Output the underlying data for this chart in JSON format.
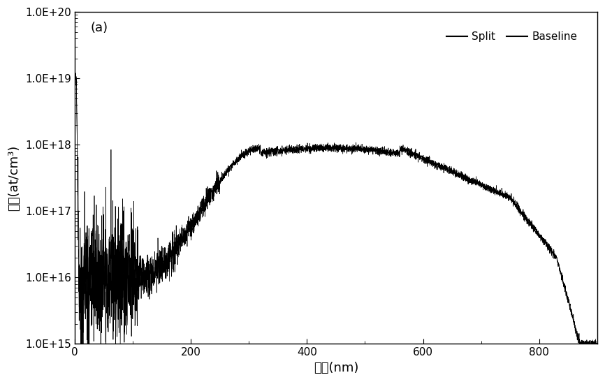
{
  "title_label": "(a)",
  "xlabel": "深度(nm)",
  "ylabel": "浓度(at/cm³)",
  "legend_split": "Split",
  "legend_baseline": "Baseline",
  "xmin": 0,
  "xmax": 900,
  "ymin": 1000000000000000.0,
  "ymax": 1e+20,
  "line_color": "#000000",
  "background_color": "#ffffff",
  "n_points": 3000,
  "figwidth": 8.66,
  "figheight": 5.47,
  "dpi": 100
}
